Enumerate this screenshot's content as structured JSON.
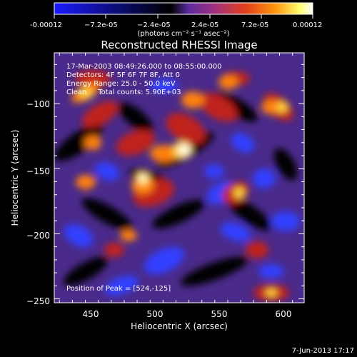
{
  "colorbar": {
    "tick_labels": [
      "-0.00012",
      "−7.2e-05",
      "−2.4e-05",
      "2.4e-05",
      "7.2e-05",
      "0.00012"
    ],
    "unit_label": "(photons cm⁻² s⁻¹ asec⁻²)",
    "colors": [
      "#1a1aff",
      "#000000",
      "#5b2a9e",
      "#a0307f",
      "#e0401a",
      "#ff9a10",
      "#ffff70",
      "#ffffff"
    ]
  },
  "image": {
    "title": "Reconstructed RHESSI Image",
    "info_lines": [
      "17-Mar-2003 08:49:26.000 to 08:55:00.000",
      "Detectors: 4F 5F 6F 7F 8F, Att 0",
      "Energy Range: 25.0 - 50.0 keV",
      "Clean     Total counts: 5.90E+03"
    ],
    "peak_label": "Position of Peak = [524,-125]",
    "footer_date": "7-Jun-2013 17:17"
  },
  "chart_data": {
    "type": "heatmap",
    "title": "Reconstructed RHESSI Image",
    "xlabel": "Heliocentric X (arcsec)",
    "ylabel": "Heliocentric Y (arcsec)",
    "xlim": [
      421,
      614
    ],
    "ylim": [
      -253,
      -61
    ],
    "x_ticks": [
      450,
      500,
      550,
      600
    ],
    "y_ticks": [
      -100,
      -150,
      -200,
      -250
    ],
    "x_tick_labels": [
      "450",
      "500",
      "550",
      "600"
    ],
    "y_tick_labels": [
      "−100",
      "−150",
      "−200",
      "−250"
    ],
    "peak": [
      524,
      -125
    ]
  }
}
